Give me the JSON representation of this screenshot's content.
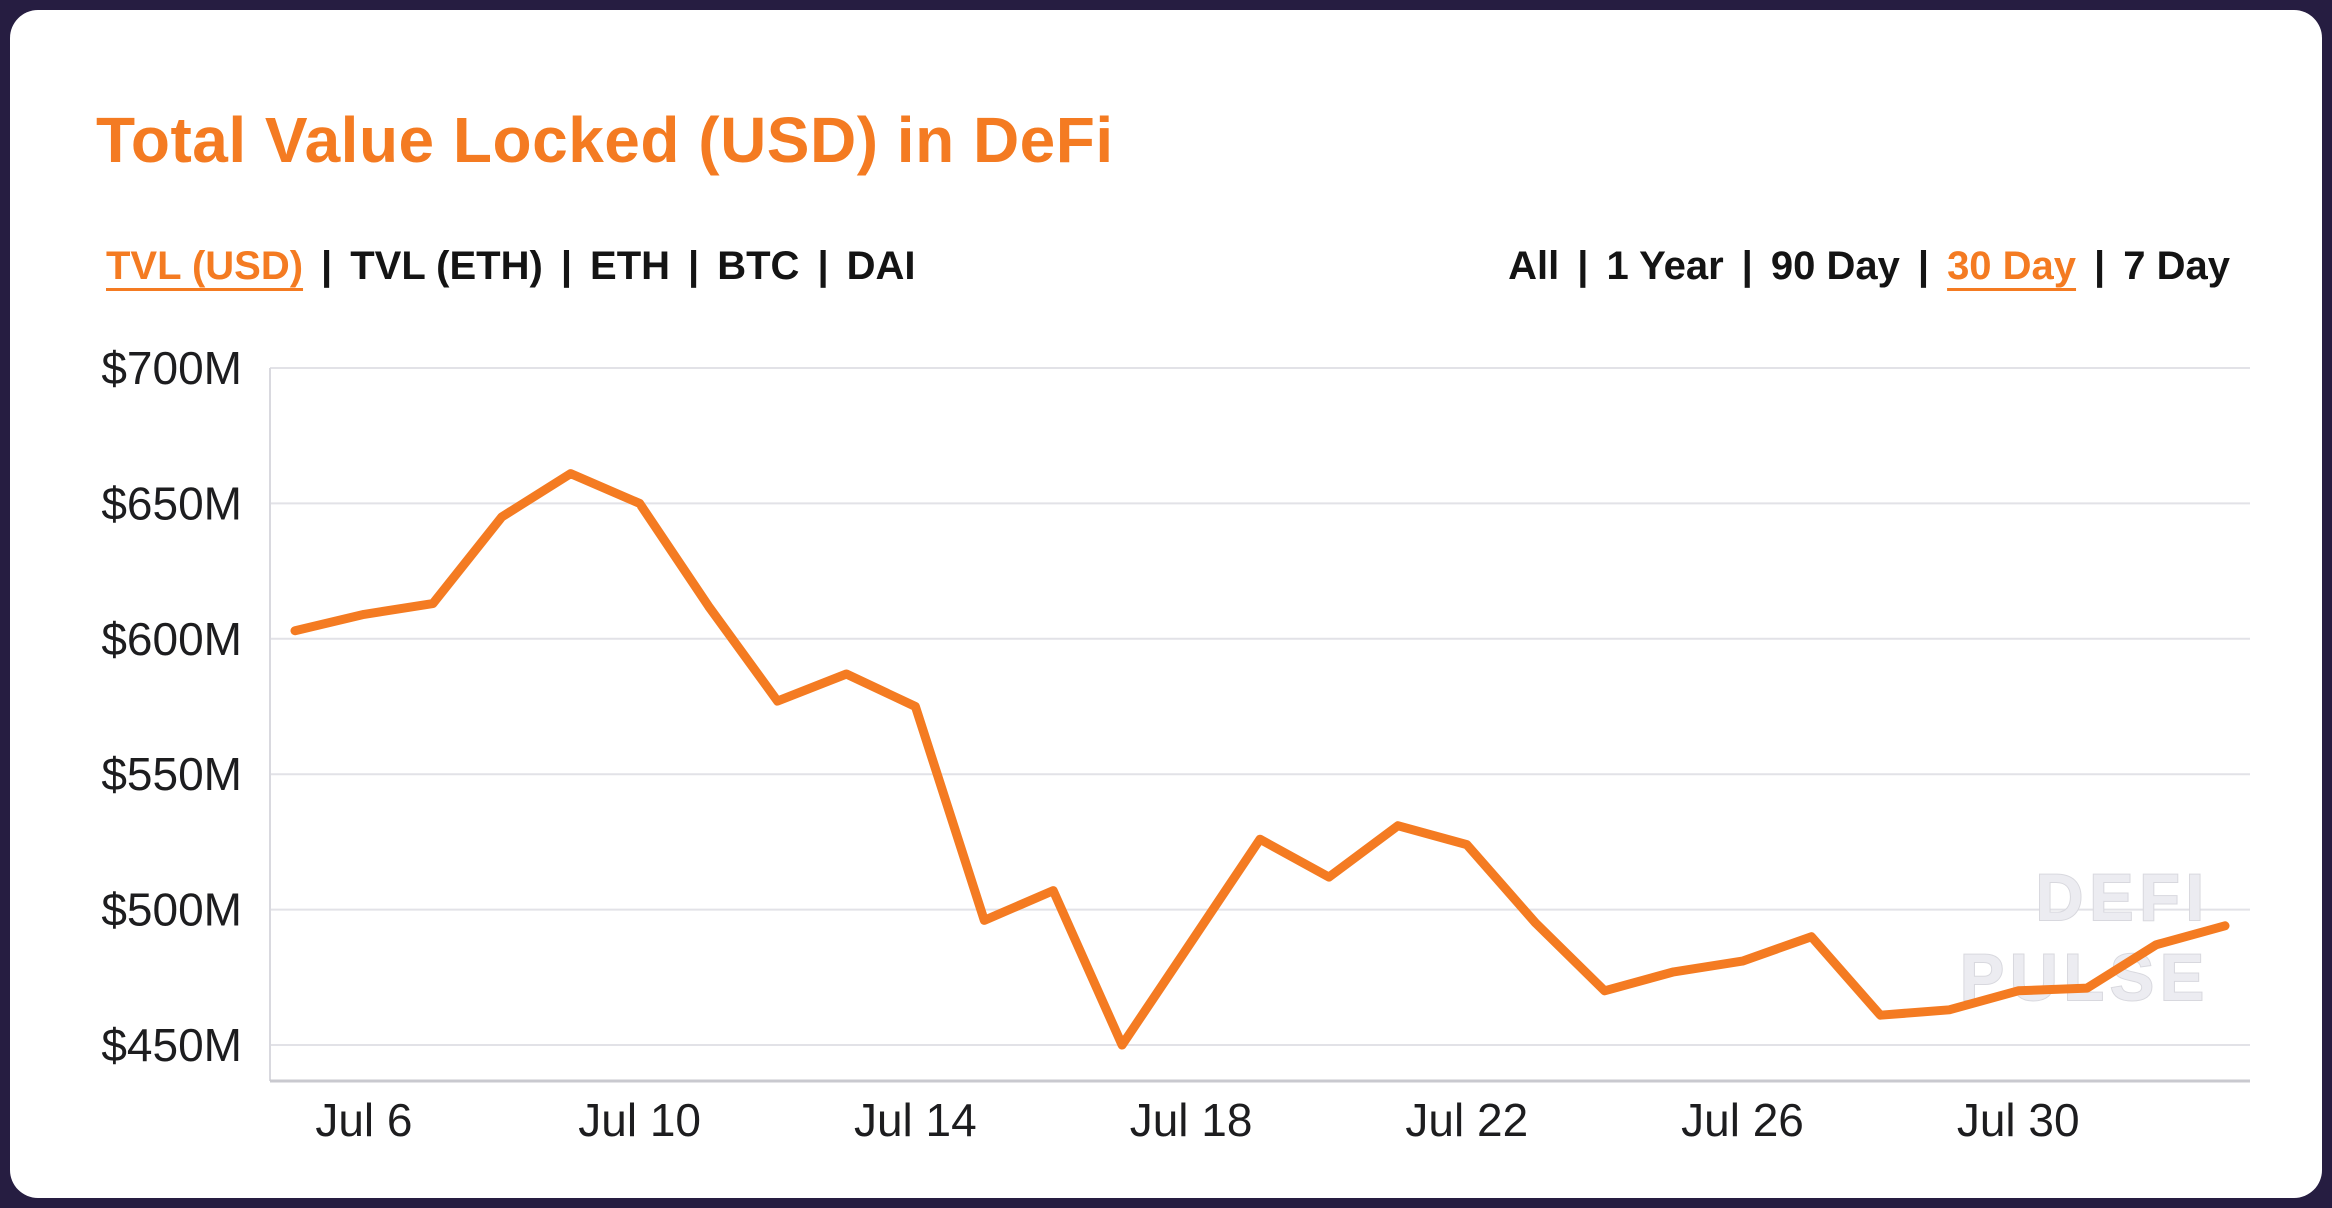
{
  "page": {
    "outer_background": "#261d41",
    "card_background": "#ffffff",
    "accent_color": "#f47b22"
  },
  "header": {
    "title": "Total Value Locked (USD) in DeFi",
    "title_color": "#f47b22"
  },
  "series_tabs": {
    "separator": "|",
    "items": [
      {
        "label": "TVL (USD)",
        "active": true
      },
      {
        "label": "TVL (ETH)",
        "active": false
      },
      {
        "label": "ETH",
        "active": false
      },
      {
        "label": "BTC",
        "active": false
      },
      {
        "label": "DAI",
        "active": false
      }
    ]
  },
  "range_tabs": {
    "separator": "|",
    "items": [
      {
        "label": "All",
        "active": false
      },
      {
        "label": "1 Year",
        "active": false
      },
      {
        "label": "90 Day",
        "active": false
      },
      {
        "label": "30 Day",
        "active": true
      },
      {
        "label": "7 Day",
        "active": false
      }
    ]
  },
  "watermark": {
    "line1": "DEFI",
    "line2": "PULSE"
  },
  "chart_data": {
    "type": "line",
    "title": "Total Value Locked (USD) in DeFi",
    "series_name": "TVL (USD)",
    "unit": "USD millions",
    "line_color": "#f47b22",
    "grid": "horizontal",
    "legend": "none",
    "ylim": [
      450,
      700
    ],
    "x": [
      "Jul 5",
      "Jul 6",
      "Jul 7",
      "Jul 8",
      "Jul 9",
      "Jul 10",
      "Jul 11",
      "Jul 12",
      "Jul 13",
      "Jul 14",
      "Jul 15",
      "Jul 16",
      "Jul 17",
      "Jul 18",
      "Jul 19",
      "Jul 20",
      "Jul 21",
      "Jul 22",
      "Jul 23",
      "Jul 24",
      "Jul 25",
      "Jul 26",
      "Jul 27",
      "Jul 28",
      "Jul 29",
      "Jul 30",
      "Jul 31",
      "Aug 1",
      "Aug 2"
    ],
    "values": [
      603,
      609,
      613,
      645,
      661,
      650,
      612,
      577,
      587,
      575,
      496,
      507,
      450,
      488,
      526,
      512,
      531,
      524,
      495,
      470,
      477,
      481,
      490,
      461,
      463,
      470,
      471,
      487,
      494
    ],
    "y_ticks": [
      {
        "value": 700,
        "label": "$700M"
      },
      {
        "value": 650,
        "label": "$650M"
      },
      {
        "value": 600,
        "label": "$600M"
      },
      {
        "value": 550,
        "label": "$550M"
      },
      {
        "value": 500,
        "label": "$500M"
      },
      {
        "value": 450,
        "label": "$450M"
      }
    ],
    "x_tick_indices": [
      1,
      5,
      9,
      13,
      17,
      21,
      25
    ],
    "x_tick_labels": [
      "Jul 6",
      "Jul 10",
      "Jul 14",
      "Jul 18",
      "Jul 22",
      "Jul 26",
      "Jul 30"
    ]
  }
}
